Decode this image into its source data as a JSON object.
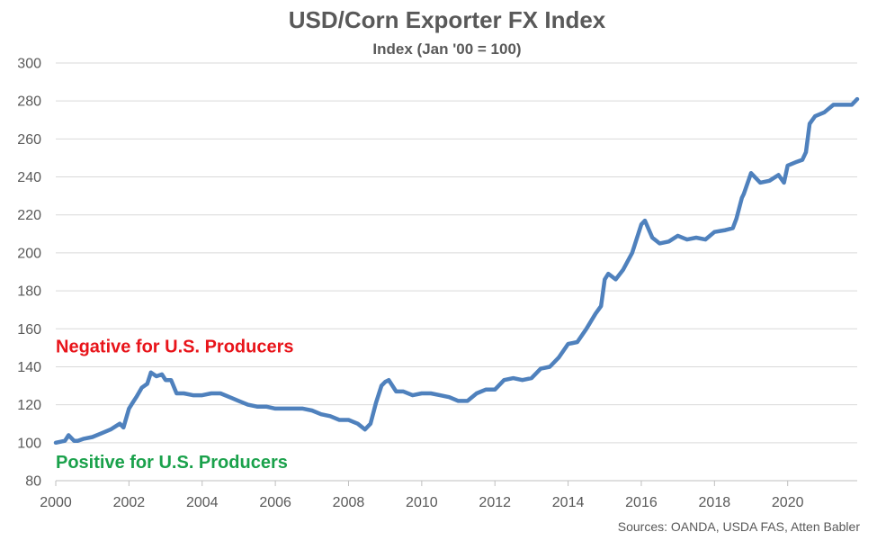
{
  "chart_data": {
    "type": "line",
    "title": "USD/Corn Exporter FX Index",
    "subtitle": "Index (Jan '00 = 100)",
    "xlabel": "",
    "ylabel": "",
    "xlim": [
      2000,
      2021.9
    ],
    "ylim": [
      80,
      300
    ],
    "y_ticks": [
      80,
      100,
      120,
      140,
      160,
      180,
      200,
      220,
      240,
      260,
      280,
      300
    ],
    "x_ticks": [
      2000,
      2002,
      2004,
      2006,
      2008,
      2010,
      2012,
      2014,
      2016,
      2018,
      2020
    ],
    "grid": true,
    "line_color": "#4f81bd",
    "annotations": [
      {
        "text": "Negative for U.S. Producers",
        "color": "#e8141a",
        "y": 151
      },
      {
        "text": "Positive for U.S. Producers",
        "color": "#1aa14b",
        "y": 90
      }
    ],
    "source": "Sources: OANDA, USDA FAS, Atten Babler",
    "series": [
      {
        "x": [
          2000.0,
          2000.25,
          2000.35,
          2000.5,
          2000.6,
          2000.75,
          2001.0,
          2001.25,
          2001.5,
          2001.75,
          2001.85,
          2002.0,
          2002.1,
          2002.2,
          2002.35,
          2002.5,
          2002.6,
          2002.75,
          2002.9,
          2003.0,
          2003.15,
          2003.3,
          2003.5,
          2003.75,
          2004.0,
          2004.25,
          2004.5,
          2004.75,
          2005.0,
          2005.25,
          2005.5,
          2005.75,
          2006.0,
          2006.25,
          2006.5,
          2006.75,
          2007.0,
          2007.25,
          2007.5,
          2007.75,
          2008.0,
          2008.25,
          2008.45,
          2008.6,
          2008.75,
          2008.9,
          2009.0,
          2009.1,
          2009.3,
          2009.5,
          2009.75,
          2010.0,
          2010.25,
          2010.5,
          2010.75,
          2011.0,
          2011.25,
          2011.5,
          2011.75,
          2012.0,
          2012.25,
          2012.5,
          2012.75,
          2013.0,
          2013.25,
          2013.5,
          2013.75,
          2014.0,
          2014.25,
          2014.5,
          2014.75,
          2014.9,
          2015.0,
          2015.1,
          2015.3,
          2015.5,
          2015.75,
          2016.0,
          2016.1,
          2016.3,
          2016.5,
          2016.75,
          2017.0,
          2017.25,
          2017.5,
          2017.75,
          2018.0,
          2018.3,
          2018.5,
          2018.6,
          2018.75,
          2018.8,
          2019.0,
          2019.25,
          2019.5,
          2019.75,
          2019.9,
          2020.0,
          2020.25,
          2020.4,
          2020.5,
          2020.6,
          2020.75,
          2021.0,
          2021.25,
          2021.5,
          2021.75,
          2021.9
        ],
        "values": [
          100,
          101,
          104,
          101,
          101,
          102,
          103,
          105,
          107,
          110,
          108,
          118,
          121,
          124,
          129,
          131,
          137,
          135,
          136,
          133,
          133,
          126,
          126,
          125,
          125,
          126,
          126,
          124,
          122,
          120,
          119,
          119,
          118,
          118,
          118,
          118,
          117,
          115,
          114,
          112,
          112,
          110,
          107,
          110,
          121,
          130,
          132,
          133,
          127,
          127,
          125,
          126,
          126,
          125,
          124,
          122,
          122,
          126,
          128,
          128,
          133,
          134,
          133,
          134,
          139,
          140,
          145,
          152,
          153,
          160,
          168,
          172,
          186,
          189,
          186,
          191,
          200,
          215,
          217,
          208,
          205,
          206,
          209,
          207,
          208,
          207,
          211,
          212,
          213,
          218,
          229,
          231,
          242,
          237,
          238,
          241,
          237,
          246,
          248,
          249,
          253,
          268,
          272,
          274,
          278,
          278,
          278,
          281
        ]
      }
    ]
  }
}
